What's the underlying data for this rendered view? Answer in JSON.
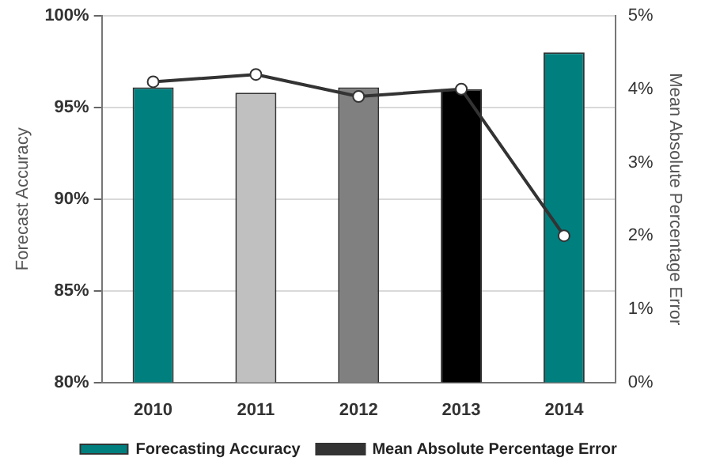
{
  "chart_data": {
    "type": "bar",
    "ylabel": "Forecast Accuracy",
    "y2label": "Mean Absolute Percentage Error",
    "categories": [
      "2010",
      "2011",
      "2012",
      "2013",
      "2014"
    ],
    "series": [
      {
        "name": "Forecasting Accuracy",
        "color": "#007f7f",
        "colors": [
          "#007f7f",
          "#c0c0c0",
          "#808080",
          "#000000",
          "#007f7f"
        ],
        "values": [
          96.1,
          95.8,
          96.1,
          96.0,
          98.0
        ]
      },
      {
        "name": "Mean Absolute Percentage Error",
        "type": "line",
        "axis": "y2",
        "color": "#333333",
        "marker": "circle",
        "values": [
          4.1,
          4.2,
          3.9,
          4.0,
          2.0
        ]
      }
    ],
    "ylim": [
      80,
      100
    ],
    "yticks": [
      {
        "value": 80,
        "label": "80%"
      },
      {
        "value": 85,
        "label": "85%"
      },
      {
        "value": 90,
        "label": "90%"
      },
      {
        "value": 95,
        "label": "95%"
      },
      {
        "value": 100,
        "label": "100%"
      }
    ],
    "y2lim": [
      0,
      5
    ],
    "y2ticks": [
      {
        "value": 0,
        "label": "0%"
      },
      {
        "value": 1,
        "label": "1%"
      },
      {
        "value": 2,
        "label": "2%"
      },
      {
        "value": 3,
        "label": "3%"
      },
      {
        "value": 4,
        "label": "4%"
      },
      {
        "value": 5,
        "label": "5%"
      }
    ],
    "grid": "y",
    "legend": "bottom"
  }
}
